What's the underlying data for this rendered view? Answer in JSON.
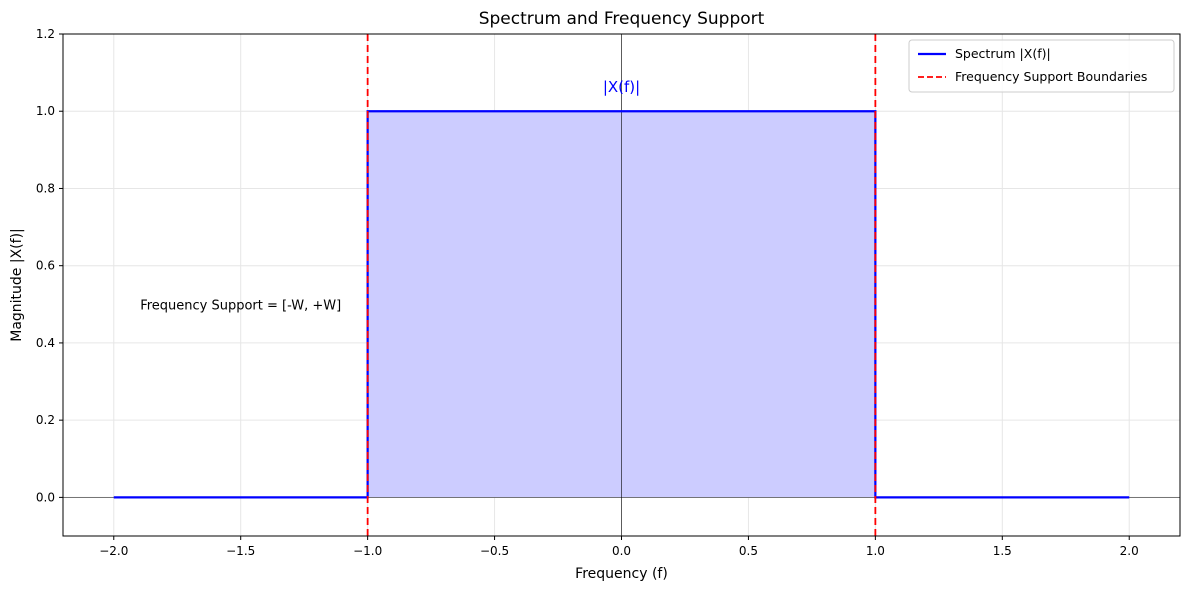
{
  "chart_data": {
    "type": "line",
    "title": "Spectrum and Frequency Support",
    "xlabel": "Frequency (f)",
    "ylabel": "Magnitude |X(f)|",
    "xlim": [
      -2.2,
      2.2
    ],
    "ylim": [
      -0.1,
      1.2
    ],
    "xticks": [
      -2.0,
      -1.5,
      -1.0,
      -0.5,
      0.0,
      0.5,
      1.0,
      1.5,
      2.0
    ],
    "xtick_labels": [
      "−2.0",
      "−1.5",
      "−1.0",
      "−0.5",
      "0.0",
      "0.5",
      "1.0",
      "1.5",
      "2.0"
    ],
    "yticks": [
      0.0,
      0.2,
      0.4,
      0.6,
      0.8,
      1.0,
      1.2
    ],
    "ytick_labels": [
      "0.0",
      "0.2",
      "0.4",
      "0.6",
      "0.8",
      "1.0",
      "1.2"
    ],
    "grid": true,
    "legend_position": "top-right",
    "series": [
      {
        "name": "Spectrum |X(f)|",
        "color": "#0000ff",
        "style": "solid",
        "fill_color": "#ccccff",
        "x": [
          -2.0,
          -1.0,
          -1.0,
          1.0,
          1.0,
          2.0
        ],
        "y": [
          0.0,
          0.0,
          1.0,
          1.0,
          0.0,
          0.0
        ]
      },
      {
        "name": "Frequency Support Boundaries",
        "color": "#ff0000",
        "style": "dashed",
        "vlines": [
          -1.0,
          1.0
        ]
      }
    ],
    "annotations": [
      {
        "text": "|X(f)|",
        "x": 0.0,
        "y": 1.05,
        "color": "#0000ff"
      },
      {
        "text": "Frequency Support = [-W, +W]",
        "x": -1.5,
        "y": 0.5,
        "color": "#000000"
      }
    ],
    "reference_lines": {
      "x": 0.0,
      "y": 0.0,
      "color": "#000000"
    }
  }
}
